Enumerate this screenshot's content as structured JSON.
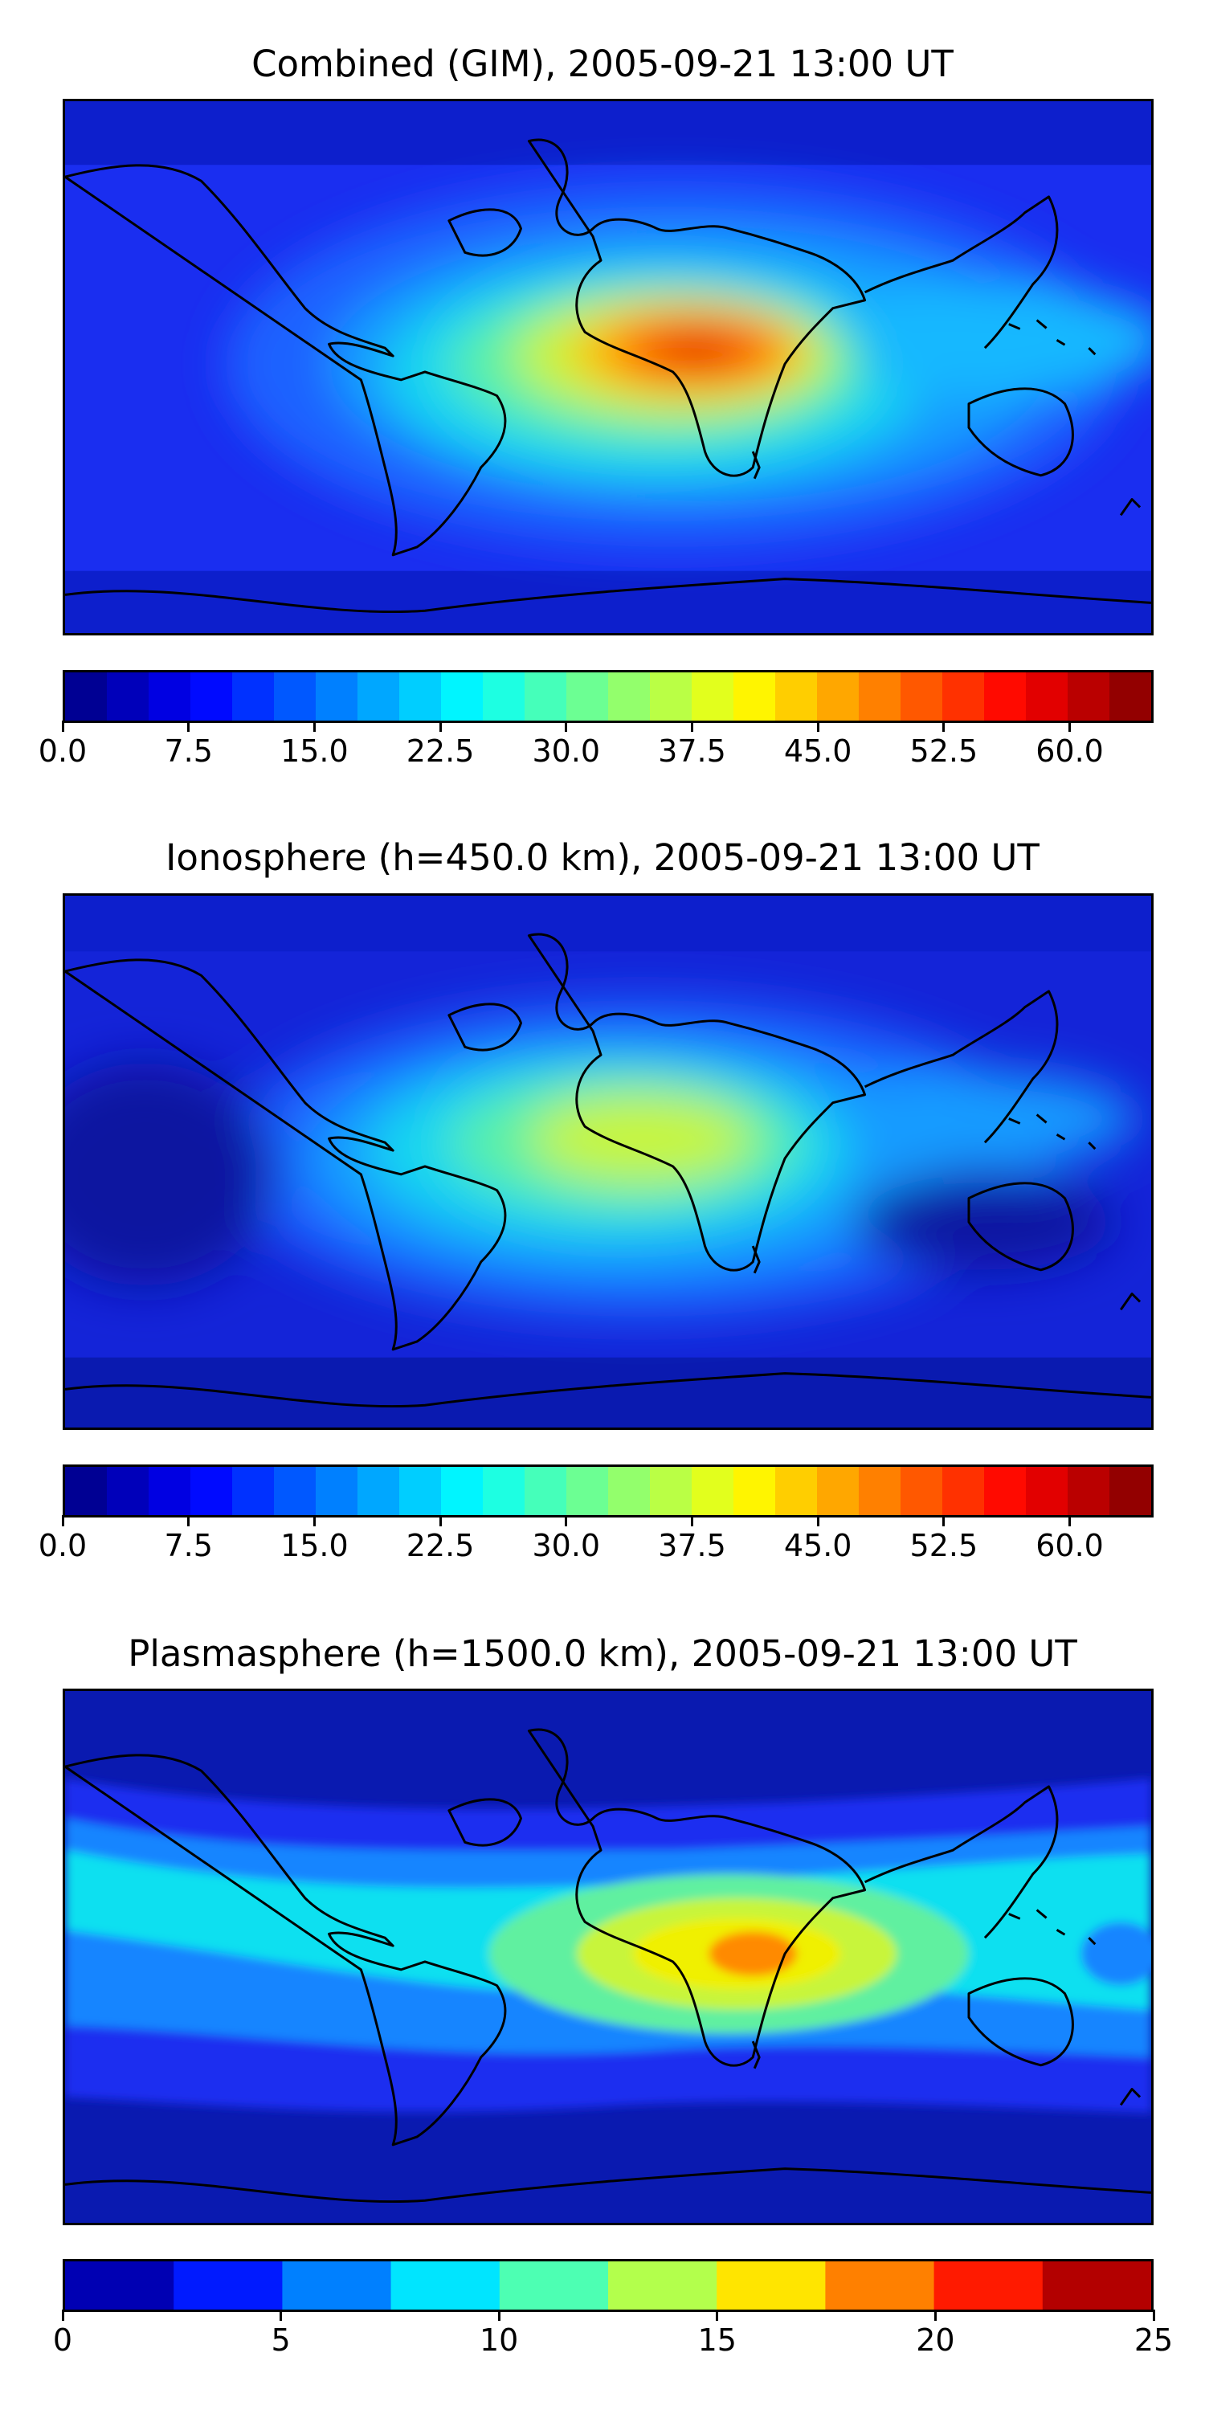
{
  "panels": [
    {
      "title": "Combined (GIM), 2005-09-21 13:00 UT",
      "colorbar": {
        "vmin": 0,
        "vmax": 65,
        "levels": 26,
        "ticks": [
          "0.0",
          "7.5",
          "15.0",
          "22.5",
          "30.0",
          "37.5",
          "45.0",
          "52.5",
          "60.0"
        ],
        "tick_values": [
          0,
          7.5,
          15,
          22.5,
          30,
          37.5,
          45,
          52.5,
          60
        ]
      }
    },
    {
      "title": "Ionosphere  (h=450.0 km), 2005-09-21 13:00 UT",
      "colorbar": {
        "vmin": 0,
        "vmax": 65,
        "levels": 26,
        "ticks": [
          "0.0",
          "7.5",
          "15.0",
          "22.5",
          "30.0",
          "37.5",
          "45.0",
          "52.5",
          "60.0"
        ],
        "tick_values": [
          0,
          7.5,
          15,
          22.5,
          30,
          37.5,
          45,
          52.5,
          60
        ]
      }
    },
    {
      "title": "Plasmasphere (h=1500.0 km), 2005-09-21 13:00 UT",
      "colorbar": {
        "vmin": 0,
        "vmax": 25,
        "levels": 10,
        "ticks": [
          "0",
          "5",
          "10",
          "15",
          "20",
          "25"
        ],
        "tick_values": [
          0,
          5,
          10,
          15,
          20,
          25
        ]
      }
    }
  ],
  "colormap": "jet",
  "coastline_color": "#000000"
}
